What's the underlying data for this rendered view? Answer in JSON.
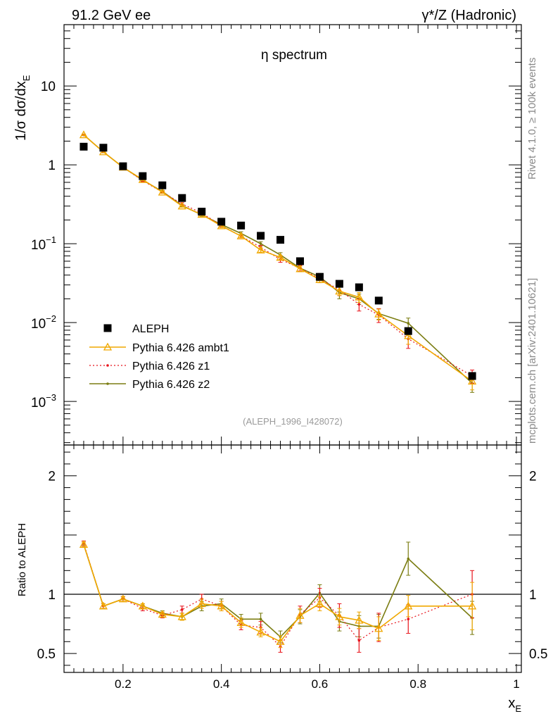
{
  "header": {
    "left": "91.2 GeV ee",
    "right": "γ*/Z (Hadronic)"
  },
  "side_labels": {
    "rivet": "Rivet 4.1.0, ≥ 100k events",
    "mcplots": "mcplots.cern.ch [arXiv:2401.10621]"
  },
  "chart_data": [
    {
      "type": "scatter",
      "scale": "log",
      "title": "η spectrum",
      "analysis_id": "(ALEPH_1996_I428072)",
      "ylabel_main": "1/σ  dσ/dx",
      "ylabel_sub": "E",
      "xlabel_main": "x",
      "xlabel_sub": "E",
      "xlim": [
        0.08,
        1.01
      ],
      "ylim": [
        0.00028,
        60
      ],
      "yticks": [
        {
          "value": 0.001,
          "base": "10",
          "exp": "−3"
        },
        {
          "value": 0.01,
          "base": "10",
          "exp": "−2"
        },
        {
          "value": 0.1,
          "base": "10",
          "exp": "−1"
        },
        {
          "value": 1,
          "label": "1"
        },
        {
          "value": 10,
          "label": "10"
        }
      ],
      "x": [
        0.12,
        0.16,
        0.2,
        0.24,
        0.28,
        0.32,
        0.36,
        0.4,
        0.44,
        0.48,
        0.52,
        0.56,
        0.6,
        0.64,
        0.68,
        0.72,
        0.78,
        0.91
      ],
      "series": [
        {
          "name": "ALEPH",
          "style": "data",
          "color": "#000000",
          "values": [
            1.7,
            1.65,
            0.96,
            0.72,
            0.55,
            0.38,
            0.255,
            0.19,
            0.17,
            0.126,
            0.112,
            0.06,
            0.038,
            0.031,
            0.028,
            0.019,
            0.0078,
            0.0021
          ]
        },
        {
          "name": "Pythia 6.426 ambt1",
          "style": "triangle",
          "color": "#f0a800",
          "values": [
            2.4,
            1.46,
            0.93,
            0.65,
            0.45,
            0.3,
            0.235,
            0.168,
            0.125,
            0.083,
            0.067,
            0.048,
            0.035,
            0.025,
            0.021,
            0.0128,
            0.0068,
            0.0018
          ],
          "errors": [
            0.05,
            0.04,
            0.03,
            0.02,
            0.015,
            0.01,
            0.01,
            0.008,
            0.006,
            0.005,
            0.004,
            0.004,
            0.003,
            0.003,
            0.003,
            0.002,
            0.0015,
            0.0004
          ]
        },
        {
          "name": "Pythia 6.426 z1",
          "style": "dot-dashed",
          "color": "#e8141c",
          "values": [
            2.4,
            1.46,
            0.93,
            0.63,
            0.45,
            0.32,
            0.245,
            0.17,
            0.125,
            0.09,
            0.063,
            0.049,
            0.036,
            0.026,
            0.017,
            0.0125,
            0.0062,
            0.0021
          ],
          "errors": [
            0.05,
            0.04,
            0.03,
            0.02,
            0.015,
            0.012,
            0.01,
            0.008,
            0.006,
            0.005,
            0.005,
            0.004,
            0.004,
            0.004,
            0.003,
            0.0025,
            0.0015,
            0.0004
          ]
        },
        {
          "name": "Pythia 6.426 z2",
          "style": "dot-solid",
          "color": "#7b7d12",
          "values": [
            2.4,
            1.46,
            0.93,
            0.64,
            0.46,
            0.305,
            0.232,
            0.175,
            0.135,
            0.1,
            0.072,
            0.049,
            0.038,
            0.024,
            0.02,
            0.013,
            0.0098,
            0.0017
          ],
          "errors": [
            0.05,
            0.04,
            0.03,
            0.02,
            0.015,
            0.01,
            0.01,
            0.008,
            0.007,
            0.006,
            0.005,
            0.004,
            0.004,
            0.004,
            0.003,
            0.002,
            0.0016,
            0.0004
          ]
        }
      ]
    },
    {
      "type": "line",
      "ylabel": "Ratio to ALEPH",
      "ylim": [
        0.34,
        2.26
      ],
      "yticks": [
        {
          "value": 0.5,
          "label": "0.5"
        },
        {
          "value": 1,
          "label": "1"
        },
        {
          "value": 2,
          "label": "2"
        }
      ],
      "xticks": [
        {
          "value": 0.2,
          "label": "0.2"
        },
        {
          "value": 0.4,
          "label": "0.4"
        },
        {
          "value": 0.6,
          "label": "0.6"
        },
        {
          "value": 0.8,
          "label": "0.8"
        },
        {
          "value": 1.0,
          "label": "1"
        }
      ],
      "reference": 1,
      "x": [
        0.12,
        0.16,
        0.2,
        0.24,
        0.28,
        0.32,
        0.36,
        0.4,
        0.44,
        0.48,
        0.52,
        0.56,
        0.6,
        0.64,
        0.68,
        0.72,
        0.78,
        0.91
      ],
      "series": [
        {
          "name": "Pythia 6.426 ambt1",
          "style": "triangle",
          "color": "#f0a800",
          "values": [
            1.42,
            0.9,
            0.96,
            0.9,
            0.83,
            0.81,
            0.92,
            0.9,
            0.76,
            0.68,
            0.6,
            0.82,
            0.92,
            0.81,
            0.78,
            0.71,
            0.9,
            0.9
          ],
          "errors": [
            0.02,
            0.02,
            0.02,
            0.02,
            0.02,
            0.03,
            0.04,
            0.04,
            0.04,
            0.04,
            0.05,
            0.06,
            0.06,
            0.07,
            0.07,
            0.1,
            0.09,
            0.2
          ]
        },
        {
          "name": "Pythia 6.426 z1",
          "style": "dot-dashed",
          "color": "#e8141c",
          "values": [
            1.43,
            0.9,
            0.96,
            0.88,
            0.82,
            0.87,
            0.96,
            0.9,
            0.74,
            0.72,
            0.56,
            0.83,
            0.97,
            0.82,
            0.61,
            0.72,
            0.79,
            1.0
          ],
          "errors": [
            0.02,
            0.02,
            0.02,
            0.02,
            0.02,
            0.03,
            0.04,
            0.04,
            0.04,
            0.05,
            0.05,
            0.07,
            0.08,
            0.1,
            0.1,
            0.12,
            0.12,
            0.2
          ]
        },
        {
          "name": "Pythia 6.426 z2",
          "style": "dot-solid",
          "color": "#7b7d12",
          "values": [
            1.42,
            0.9,
            0.96,
            0.9,
            0.84,
            0.81,
            0.9,
            0.92,
            0.79,
            0.79,
            0.64,
            0.81,
            1.01,
            0.77,
            0.73,
            0.73,
            1.3,
            0.8
          ],
          "errors": [
            0.02,
            0.02,
            0.02,
            0.02,
            0.02,
            0.03,
            0.04,
            0.04,
            0.04,
            0.05,
            0.05,
            0.06,
            0.07,
            0.08,
            0.09,
            0.1,
            0.14,
            0.14
          ]
        }
      ]
    }
  ]
}
